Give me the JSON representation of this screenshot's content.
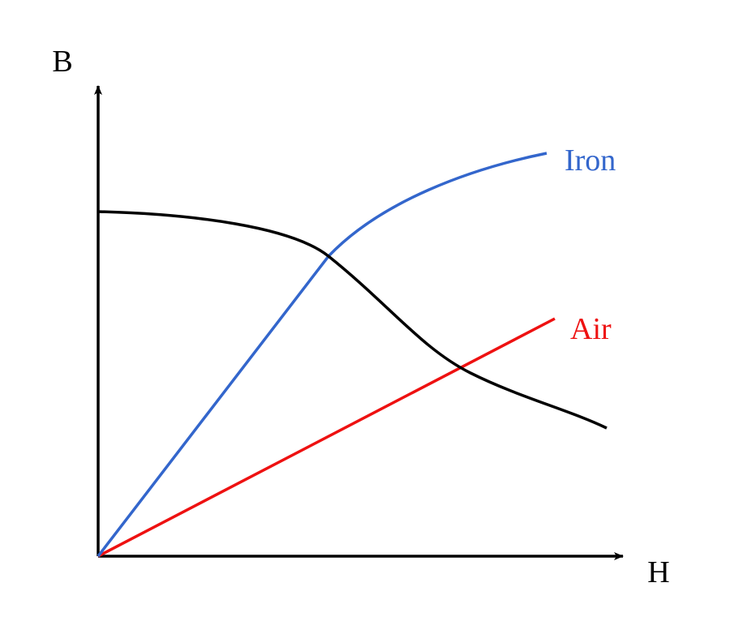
{
  "axes": {
    "y_label": "B",
    "x_label": "H"
  },
  "curves": {
    "iron": {
      "label": "Iron",
      "color": "#3366cc"
    },
    "air": {
      "label": "Air",
      "color": "#ee1111"
    },
    "operating_line": {
      "color": "#000000"
    }
  }
}
